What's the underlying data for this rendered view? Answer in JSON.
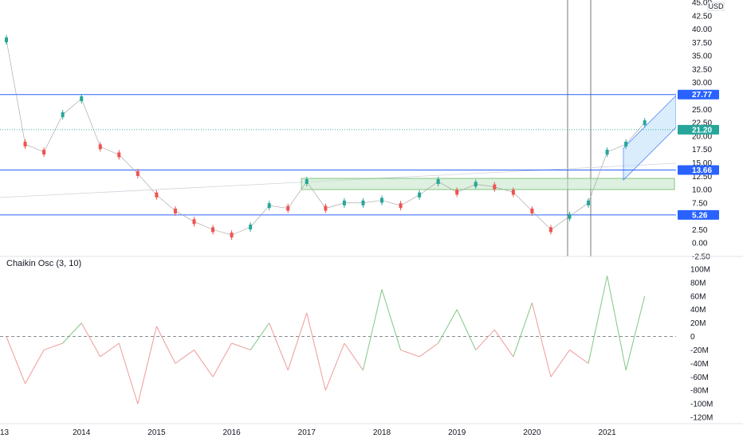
{
  "currency": "USD",
  "price_axis": {
    "ticks": [
      "45.00",
      "42.50",
      "40.00",
      "37.50",
      "35.00",
      "32.50",
      "30.00",
      "25.00",
      "22.50",
      "20.00",
      "17.50",
      "15.00",
      "12.50",
      "10.00",
      "7.50",
      "5.00",
      "2.50",
      "0.00",
      "-2.50"
    ],
    "ylim": [
      -2.5,
      45.0
    ]
  },
  "oscillator_axis": {
    "ticks": [
      "100M",
      "80M",
      "60M",
      "40M",
      "20M",
      "0",
      "-20M",
      "-40M",
      "-60M",
      "-80M",
      "-100M",
      "-120M"
    ],
    "ylim": [
      -120,
      100
    ]
  },
  "time_axis": {
    "ticks": [
      "13",
      "2014",
      "2015",
      "2016",
      "2017",
      "2018",
      "2019",
      "2020",
      "2021"
    ]
  },
  "levels": [
    {
      "value": 27.77,
      "label": "27.77",
      "color": "#2962ff"
    },
    {
      "value": 13.66,
      "label": "13.66",
      "color": "#2962ff"
    },
    {
      "value": 5.26,
      "label": "5.26",
      "color": "#2962ff"
    }
  ],
  "last_price": {
    "value": 21.2,
    "label": "21.20",
    "color": "#26a69a"
  },
  "oscillator": {
    "title": "Chaikin Osc (3, 10)",
    "positive_color": "#81c784",
    "negative_color": "#ef9a9a"
  },
  "chart_data": [
    {
      "type": "candlestick",
      "ylabel": "USD",
      "ylim": [
        -2.5,
        45.0
      ],
      "x": [
        2013.0,
        2013.25,
        2013.5,
        2013.75,
        2014.0,
        2014.25,
        2014.5,
        2014.75,
        2015.0,
        2015.25,
        2015.5,
        2015.75,
        2016.0,
        2016.25,
        2016.5,
        2016.75,
        2017.0,
        2017.25,
        2017.5,
        2017.75,
        2018.0,
        2018.25,
        2018.5,
        2018.75,
        2019.0,
        2019.25,
        2019.5,
        2019.75,
        2020.0,
        2020.25,
        2020.5,
        2020.75,
        2021.0,
        2021.25,
        2021.5
      ],
      "values": [
        38.0,
        18.5,
        17.0,
        24.0,
        27.0,
        18.0,
        16.5,
        13.0,
        9.0,
        6.0,
        4.0,
        2.5,
        1.5,
        3.0,
        7.0,
        6.5,
        11.5,
        6.5,
        7.5,
        7.5,
        8.0,
        7.0,
        9.0,
        11.5,
        9.5,
        11.0,
        10.5,
        9.5,
        6.0,
        2.5,
        5.0,
        7.5,
        17.0,
        18.5,
        22.5
      ],
      "horizontal_levels": [
        27.77,
        13.66,
        5.26
      ],
      "last_price": 21.2
    },
    {
      "type": "line",
      "title": "Chaikin Osc (3, 10)",
      "ylim": [
        -120,
        100
      ],
      "x": [
        2013.0,
        2013.25,
        2013.5,
        2013.75,
        2014.0,
        2014.25,
        2014.5,
        2014.75,
        2015.0,
        2015.25,
        2015.5,
        2015.75,
        2016.0,
        2016.25,
        2016.5,
        2016.75,
        2017.0,
        2017.25,
        2017.5,
        2017.75,
        2018.0,
        2018.25,
        2018.5,
        2018.75,
        2019.0,
        2019.25,
        2019.5,
        2019.75,
        2020.0,
        2020.25,
        2020.5,
        2020.75,
        2021.0,
        2021.25,
        2021.5
      ],
      "values": [
        0,
        -70,
        -20,
        -10,
        20,
        -30,
        -10,
        -100,
        15,
        -40,
        -20,
        -60,
        -10,
        -20,
        20,
        -50,
        35,
        -80,
        -10,
        -50,
        70,
        -20,
        -30,
        -10,
        40,
        -20,
        10,
        -30,
        50,
        -60,
        -20,
        -40,
        90,
        -50,
        60
      ]
    }
  ]
}
